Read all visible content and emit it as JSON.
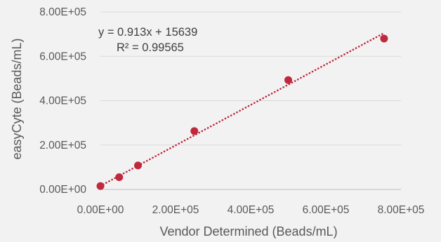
{
  "chart_data": {
    "type": "scatter",
    "xlabel": "Vendor Determined (Beads/mL)",
    "ylabel": "easyCyte (Beads/mL)",
    "xlim": [
      0,
      800000
    ],
    "ylim": [
      0,
      800000
    ],
    "x_ticks": [
      "0.00E+00",
      "2.00E+05",
      "4.00E+05",
      "6.00E+05",
      "8.00E+05"
    ],
    "y_ticks": [
      "0.00E+00",
      "2.00E+05",
      "4.00E+05",
      "6.00E+05",
      "8.00E+05"
    ],
    "grid": "horizontal",
    "marker_color": "#c0283e",
    "trendline_color": "#c0283e",
    "series": [
      {
        "points": [
          {
            "x": 0,
            "y": 15000
          },
          {
            "x": 50000,
            "y": 55000
          },
          {
            "x": 100000,
            "y": 108000
          },
          {
            "x": 250000,
            "y": 263000
          },
          {
            "x": 500000,
            "y": 493000
          },
          {
            "x": 755000,
            "y": 680000
          }
        ]
      }
    ],
    "trendline": {
      "type": "linear",
      "slope": 0.913,
      "intercept": 15639,
      "x_range": [
        0,
        755000
      ],
      "equation": "y = 0.913x + 15639",
      "r_squared": "R² = 0.99565"
    }
  }
}
